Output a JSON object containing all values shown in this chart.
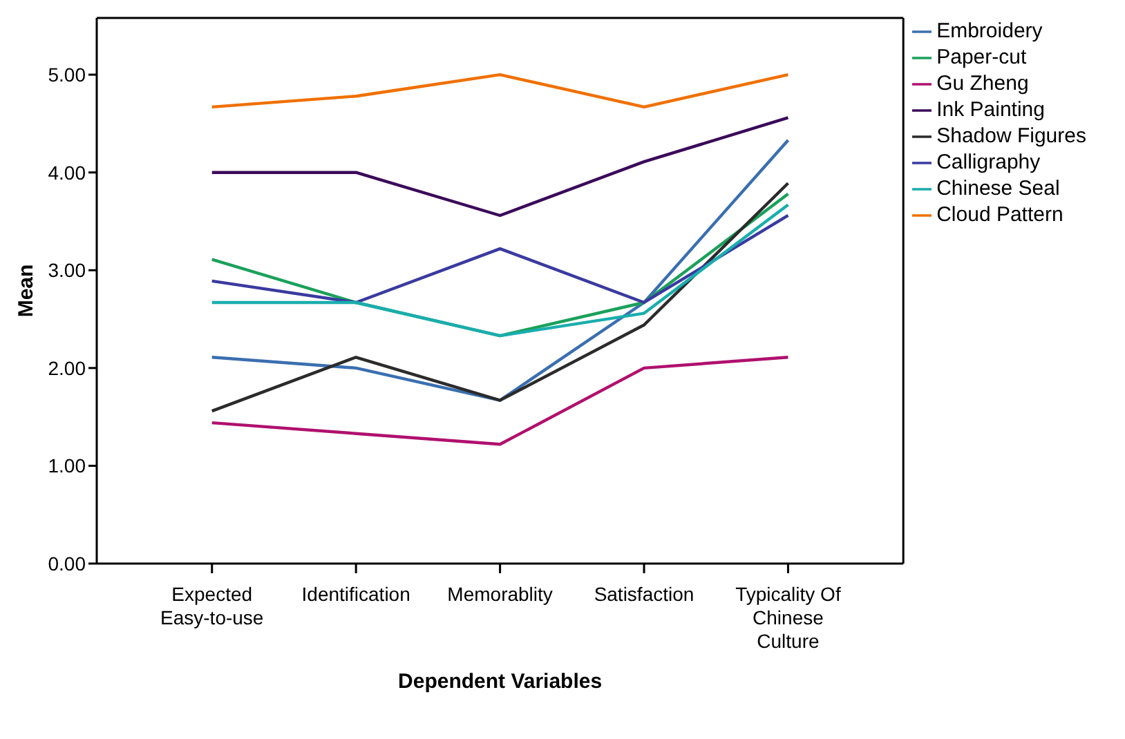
{
  "chart_data": {
    "type": "line",
    "xlabel": "Dependent Variables",
    "ylabel": "Mean",
    "categories": [
      "Expected Easy-to-use",
      "Identification",
      "Memorablity",
      "Satisfaction",
      "Typicality Of Chinese Culture"
    ],
    "series": [
      {
        "name": "Embroidery",
        "color": "#3a6fb0",
        "values": [
          2.11,
          2.0,
          1.67,
          2.67,
          4.33
        ]
      },
      {
        "name": "Paper-cut",
        "color": "#1aa15a",
        "values": [
          3.11,
          2.67,
          2.33,
          2.67,
          3.78
        ]
      },
      {
        "name": "Gu Zheng",
        "color": "#b0106e",
        "values": [
          1.44,
          1.33,
          1.22,
          2.0,
          2.11
        ]
      },
      {
        "name": "Ink Painting",
        "color": "#3b0a5a",
        "values": [
          4.0,
          4.0,
          3.56,
          4.11,
          4.56
        ]
      },
      {
        "name": "Shadow Figures",
        "color": "#2b2b2b",
        "values": [
          1.56,
          2.11,
          1.67,
          2.44,
          3.89
        ]
      },
      {
        "name": "Calligraphy",
        "color": "#3a3aa0",
        "values": [
          2.89,
          2.67,
          3.22,
          2.67,
          3.56
        ]
      },
      {
        "name": "Chinese Seal",
        "color": "#1aadad",
        "values": [
          2.67,
          2.67,
          2.33,
          2.56,
          3.67
        ]
      },
      {
        "name": "Cloud Pattern",
        "color": "#f07000",
        "values": [
          4.67,
          4.78,
          5.0,
          4.67,
          5.0
        ]
      }
    ],
    "ylim": [
      0,
      5.58
    ],
    "yticks": [
      {
        "value": 0,
        "label": "0.00"
      },
      {
        "value": 1,
        "label": "1.00"
      },
      {
        "value": 2,
        "label": "2.00"
      },
      {
        "value": 3,
        "label": "3.00"
      },
      {
        "value": 4,
        "label": "4.00"
      },
      {
        "value": 5,
        "label": "5.00"
      }
    ],
    "legend": "top right",
    "marker": "none",
    "line_style": "solid"
  }
}
